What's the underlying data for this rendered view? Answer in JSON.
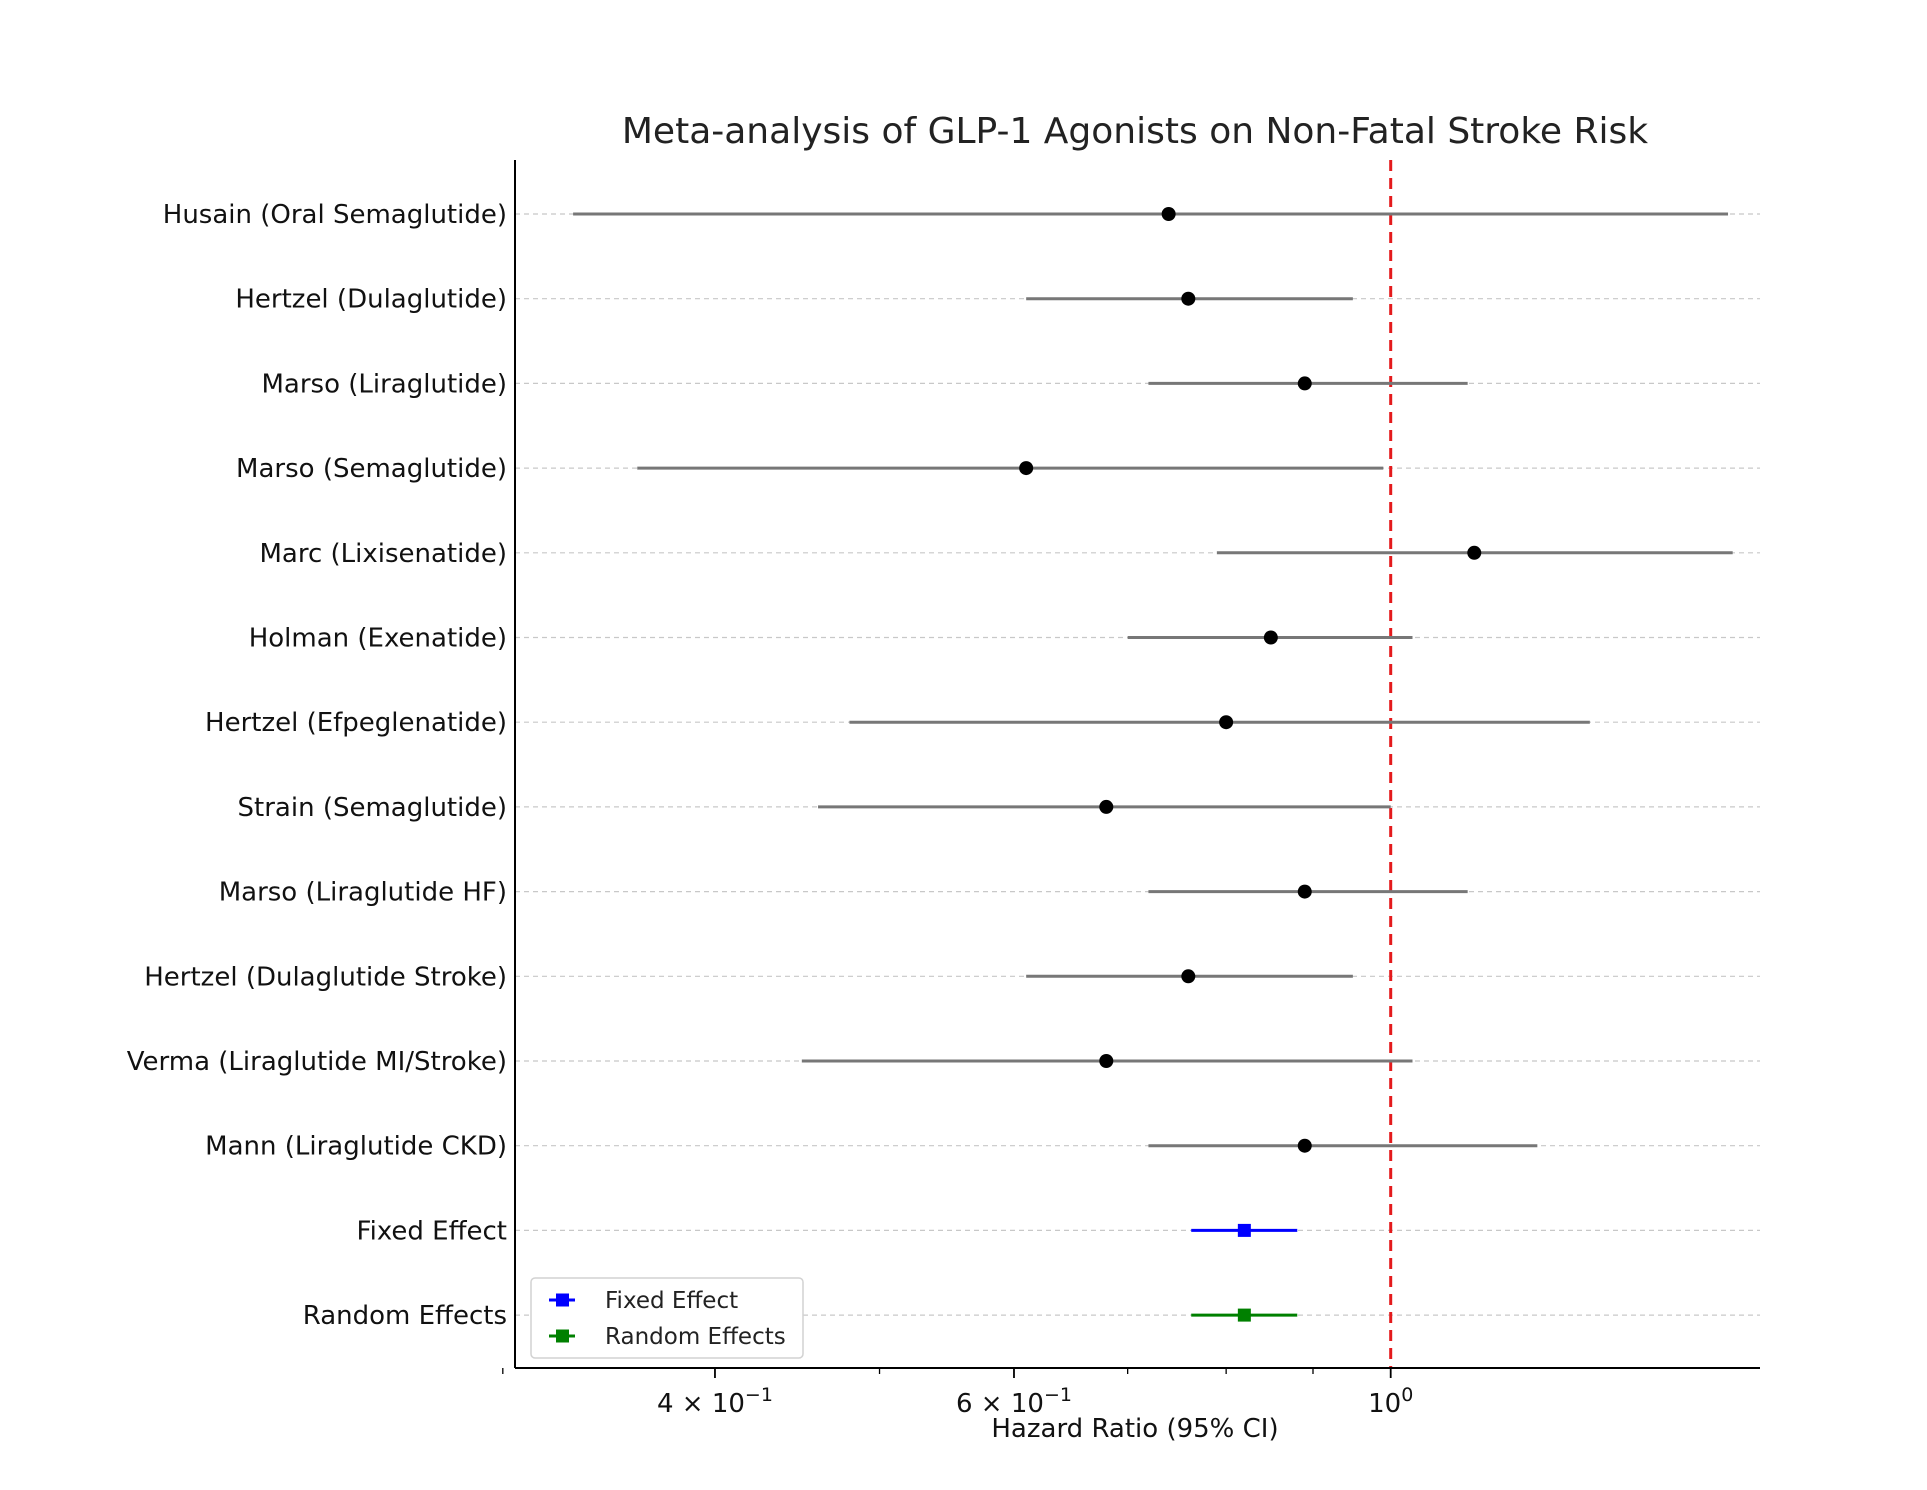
{
  "chart_data": {
    "type": "forest",
    "title": "Meta-analysis of GLP-1 Agonists on Non-Fatal Stroke Risk",
    "xlabel": "Hazard Ratio (95% CI)",
    "xscale": "log",
    "xlim": [
      0.305,
      1.65
    ],
    "reference_line": 1.0,
    "reference_color": "#e41a1c",
    "x_ticks": [
      {
        "value": 0.4,
        "base": "4 × 10",
        "exp": "−1"
      },
      {
        "value": 0.6,
        "base": "6 × 10",
        "exp": "−1"
      },
      {
        "value": 1.0,
        "base": "10",
        "exp": "0"
      }
    ],
    "x_minor_ticks": [
      0.3,
      0.5,
      0.7,
      0.8,
      0.9
    ],
    "studies": [
      {
        "label": "Husain (Oral Semaglutide)",
        "hr": 0.74,
        "lower": 0.33,
        "upper": 1.58,
        "color": "#000000",
        "ci_color": "#777777",
        "marker": "circle"
      },
      {
        "label": "Hertzel (Dulaglutide)",
        "hr": 0.76,
        "lower": 0.61,
        "upper": 0.95,
        "color": "#000000",
        "ci_color": "#777777",
        "marker": "circle"
      },
      {
        "label": "Marso (Liraglutide)",
        "hr": 0.89,
        "lower": 0.72,
        "upper": 1.11,
        "color": "#000000",
        "ci_color": "#777777",
        "marker": "circle"
      },
      {
        "label": "Marso (Semaglutide)",
        "hr": 0.61,
        "lower": 0.36,
        "upper": 0.99,
        "color": "#000000",
        "ci_color": "#777777",
        "marker": "circle"
      },
      {
        "label": "Marc (Lixisenatide)",
        "hr": 1.12,
        "lower": 0.79,
        "upper": 1.59,
        "color": "#000000",
        "ci_color": "#777777",
        "marker": "circle"
      },
      {
        "label": "Holman (Exenatide)",
        "hr": 0.85,
        "lower": 0.7,
        "upper": 1.03,
        "color": "#000000",
        "ci_color": "#777777",
        "marker": "circle"
      },
      {
        "label": "Hertzel (Efpeglenatide)",
        "hr": 0.8,
        "lower": 0.48,
        "upper": 1.31,
        "color": "#000000",
        "ci_color": "#777777",
        "marker": "circle"
      },
      {
        "label": "Strain (Semaglutide)",
        "hr": 0.68,
        "lower": 0.46,
        "upper": 1.0,
        "color": "#000000",
        "ci_color": "#777777",
        "marker": "circle"
      },
      {
        "label": "Marso (Liraglutide HF)",
        "hr": 0.89,
        "lower": 0.72,
        "upper": 1.11,
        "color": "#000000",
        "ci_color": "#777777",
        "marker": "circle"
      },
      {
        "label": "Hertzel (Dulaglutide Stroke)",
        "hr": 0.76,
        "lower": 0.61,
        "upper": 0.95,
        "color": "#000000",
        "ci_color": "#777777",
        "marker": "circle"
      },
      {
        "label": "Verma (Liraglutide MI/Stroke)",
        "hr": 0.68,
        "lower": 0.45,
        "upper": 1.03,
        "color": "#000000",
        "ci_color": "#777777",
        "marker": "circle"
      },
      {
        "label": "Mann (Liraglutide CKD)",
        "hr": 0.89,
        "lower": 0.72,
        "upper": 1.22,
        "color": "#000000",
        "ci_color": "#777777",
        "marker": "circle"
      },
      {
        "label": "Fixed Effect",
        "hr": 0.82,
        "lower": 0.763,
        "upper": 0.881,
        "color": "#0000ff",
        "ci_color": "#0000ff",
        "marker": "square"
      },
      {
        "label": "Random Effects",
        "hr": 0.82,
        "lower": 0.763,
        "upper": 0.881,
        "color": "#008000",
        "ci_color": "#008000",
        "marker": "square"
      }
    ],
    "legend": {
      "placement": "lower-left",
      "entries": [
        {
          "label": "Fixed Effect",
          "color": "#0000ff"
        },
        {
          "label": "Random Effects",
          "color": "#008000"
        }
      ]
    },
    "grid": "horizontal-dashed"
  }
}
